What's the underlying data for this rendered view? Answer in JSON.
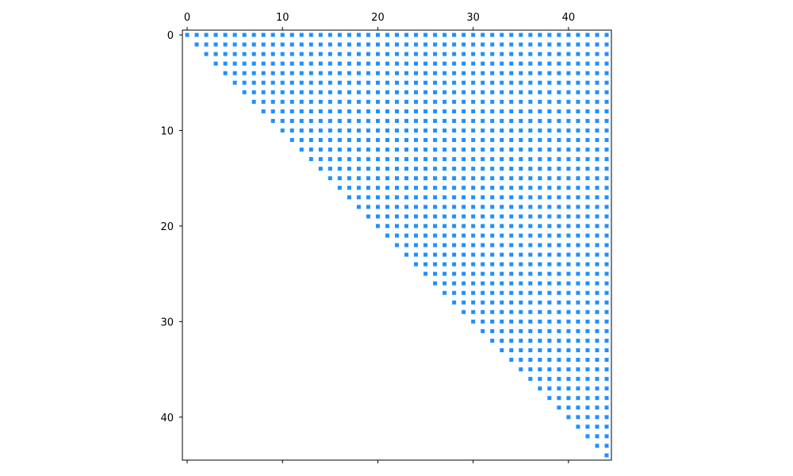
{
  "chart_data": {
    "type": "spy",
    "description_source": "upper-triangular sparsity pattern",
    "n": 45,
    "pattern": "upper-triangular",
    "nonzeros": "all (i, j) with j >= i",
    "x_ticks": [
      0,
      10,
      20,
      30,
      40
    ],
    "y_ticks": [
      0,
      10,
      20,
      30,
      40
    ],
    "x_tick_labels": [
      "0",
      "10",
      "20",
      "30",
      "40"
    ],
    "y_tick_labels": [
      "0",
      "10",
      "20",
      "30",
      "40"
    ],
    "xlim": [
      -0.5,
      44.5
    ],
    "ylim": [
      44.5,
      -0.5
    ],
    "x_axis_position": "top",
    "grid": false,
    "marker": "square",
    "color": "#1e90ff",
    "title": "",
    "xlabel": "",
    "ylabel": ""
  }
}
